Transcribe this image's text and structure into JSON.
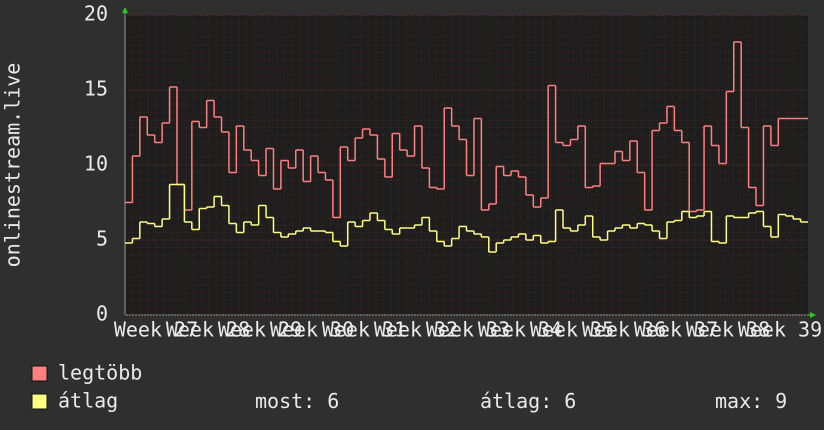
{
  "chart_data": {
    "type": "step",
    "y_label": "onlinestream.live",
    "ylim": [
      0,
      20
    ],
    "yticks": [
      0,
      5,
      10,
      15,
      20
    ],
    "grid": true,
    "x_tick_labels": [
      "Week 27",
      "Week 28",
      "Week 29",
      "Week 30",
      "Week 31",
      "Week 32",
      "Week 33",
      "Week 34",
      "Week 35",
      "Week 36",
      "Week 37",
      "Week 38",
      "Week 39"
    ],
    "series": [
      {
        "name": "legtöbb",
        "color": "#ff7f7f",
        "values": [
          7.5,
          10.6,
          13.2,
          12,
          11.5,
          12.8,
          15.2,
          8.7,
          7.0,
          12.9,
          12.5,
          14.3,
          13.2,
          12.2,
          9.5,
          12.6,
          11,
          10.3,
          9.3,
          11.1,
          8.4,
          10.3,
          9.8,
          11,
          8.9,
          10.6,
          9.5,
          9.0,
          6.5,
          11.2,
          10.3,
          11.8,
          12.4,
          12.0,
          10.4,
          9.2,
          12.1,
          11,
          10.6,
          12.6,
          9.8,
          8.5,
          8.4,
          13.8,
          12.6,
          11.7,
          9.3,
          13.1,
          7.0,
          7.4,
          9.9,
          9.3,
          9.6,
          9.2,
          8.0,
          7.2,
          7.8,
          15.3,
          11.5,
          11.3,
          11.7,
          12.6,
          8.5,
          8.6,
          10.1,
          10.1,
          10.9,
          10.3,
          11.6,
          9.5,
          7.0,
          12.3,
          12.8,
          13.9,
          12.3,
          11.5,
          6.9,
          7.0,
          12.6,
          11.3,
          10.1,
          14.9,
          18.2,
          12.5,
          8.5,
          7.3,
          12.6,
          11.3,
          13.1,
          13.1,
          13.1,
          13.1
        ]
      },
      {
        "name": "átlag",
        "color": "#ffff80",
        "values": [
          4.8,
          5.1,
          6.2,
          6.1,
          5.9,
          6.4,
          8.7,
          8.7,
          6.2,
          5.7,
          7.1,
          7.2,
          7.9,
          7.3,
          6.1,
          5.5,
          6.2,
          6.0,
          7.3,
          6.5,
          5.5,
          5.2,
          5.4,
          5.6,
          5.8,
          5.6,
          5.6,
          5.5,
          4.9,
          4.6,
          6.2,
          5.9,
          6.3,
          6.8,
          6.3,
          5.7,
          5.4,
          5.8,
          5.8,
          6.0,
          6.5,
          5.6,
          4.9,
          4.6,
          5.1,
          5.9,
          5.6,
          5.4,
          5.2,
          4.2,
          4.8,
          5.0,
          5.2,
          5.4,
          5.0,
          5.3,
          4.8,
          4.9,
          7.0,
          5.8,
          5.6,
          6.0,
          6.6,
          5.2,
          5.0,
          5.6,
          5.8,
          6.0,
          5.8,
          6.1,
          6.0,
          5.6,
          5.1,
          6.2,
          6.3,
          6.9,
          6.5,
          6.6,
          6.9,
          4.9,
          4.8,
          6.6,
          6.5,
          6.5,
          6.8,
          6.9,
          5.9,
          5.2,
          6.7,
          6.6,
          6.4,
          6.2
        ]
      }
    ],
    "stats": [
      {
        "label": "most:",
        "value": 6
      },
      {
        "label": "átlag:",
        "value": 6
      },
      {
        "label": "max:",
        "value": 9
      }
    ]
  }
}
